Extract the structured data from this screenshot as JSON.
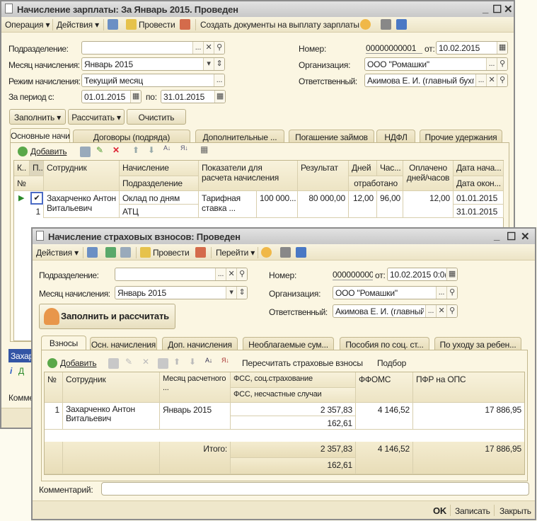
{
  "back": {
    "title": "Начисление зарплаты: За Январь 2015. Проведен",
    "toolbar": {
      "operation": "Операция",
      "actions": "Действия",
      "post": "Провести",
      "create_docs": "Создать документы на выплату зарплаты"
    },
    "fields": {
      "division_label": "Подразделение:",
      "division": "",
      "month_label": "Месяц начисления:",
      "month": "Январь 2015",
      "mode_label": "Режим начисления:",
      "mode": "Текущий месяц",
      "period_label": "За период с:",
      "period_from": "01.01.2015",
      "period_to_label": "по:",
      "period_to": "31.01.2015",
      "number_label": "Номер:",
      "number": "00000000001",
      "date_label": "от:",
      "date": "10.02.2015",
      "org_label": "Организация:",
      "org": "ООО \"Ромашки\"",
      "resp_label": "Ответственный:",
      "resp": "Акимова Е. И. (главный бухга"
    },
    "buttons": {
      "fill": "Заполнить",
      "calc": "Рассчитать",
      "clear": "Очистить"
    },
    "tabs": [
      "Основные начисле...",
      "Договоры (подряда)",
      "Дополнительные ...",
      "Погашение займов",
      "НДФЛ",
      "Прочие удержания"
    ],
    "table_toolbar": {
      "add": "Добавить"
    },
    "headers": {
      "k": "К..",
      "p": "П..",
      "num": "№",
      "employee": "Сотрудник",
      "accrual": "Начисление",
      "division": "Подразделение",
      "indicators": "Показатели для расчета начисления",
      "result": "Результат",
      "days": "Дней",
      "hours": "Час...",
      "worked": "отработано",
      "paid": "Оплачено дней/часов",
      "date_start": "Дата нача...",
      "date_end": "Дата окон..."
    },
    "rows": [
      {
        "num": "1",
        "employee": "Захарченко Антон Витальевич",
        "accrual": "Оклад по дням",
        "division": "АТЦ",
        "indicator": "Тарифная ставка ...",
        "indicator_value": "100 000...",
        "result": "80 000,00",
        "days": "12,00",
        "hours": "96,00",
        "paid": "12,00",
        "date_start": "01.01.2015",
        "date_end": "31.01.2015",
        "checked": true
      }
    ],
    "partial": {
      "selected": "Захар",
      "info": "Д",
      "comment": "Комме"
    }
  },
  "front": {
    "title": "Начисление страховых взносов: Проведен",
    "toolbar": {
      "actions": "Действия",
      "post": "Провести",
      "goto": "Перейти"
    },
    "fields": {
      "division_label": "Подразделение:",
      "division": "",
      "month_label": "Месяц начисления:",
      "month": "Январь 2015",
      "number_label": "Номер:",
      "number": "000000000",
      "date_label": "от:",
      "date": "10.02.2015  0:0(",
      "org_label": "Организация:",
      "org": "ООО \"Ромашки\"",
      "resp_label": "Ответственный:",
      "resp": "Акимова Е. И. (главный б"
    },
    "fill_calc": "Заполнить и рассчитать",
    "tabs": [
      "Взносы",
      "Осн. начисления",
      "Доп. начисления",
      "Необлагаемые сум...",
      "Пособия по соц. ст...",
      "По уходу за ребен..."
    ],
    "table_toolbar": {
      "add": "Добавить",
      "recalc": "Пересчитать страховые взносы",
      "select": "Подбор"
    },
    "headers": {
      "num": "№",
      "employee": "Сотрудник",
      "month": "Месяц расчетного ...",
      "fss": "ФСС, соц.страхование",
      "fss_ns": "ФСС, несчастные случаи",
      "ffoms": "ФФОМС",
      "pfr": "ПФР на ОПС"
    },
    "rows": [
      {
        "num": "1",
        "employee": "Захарченко Антон Витальевич",
        "month": "Январь 2015",
        "fss": "2 357,83",
        "fss_ns": "162,61",
        "ffoms": "4 146,52",
        "pfr": "17 886,95"
      }
    ],
    "totals": {
      "label": "Итого:",
      "fss": "2 357,83",
      "fss_ns": "162,61",
      "ffoms": "4 146,52",
      "pfr": "17 886,95"
    },
    "comment_label": "Комментарий:",
    "comment": "",
    "footer": {
      "ok": "OK",
      "save": "Записать",
      "close": "Закрыть"
    }
  }
}
